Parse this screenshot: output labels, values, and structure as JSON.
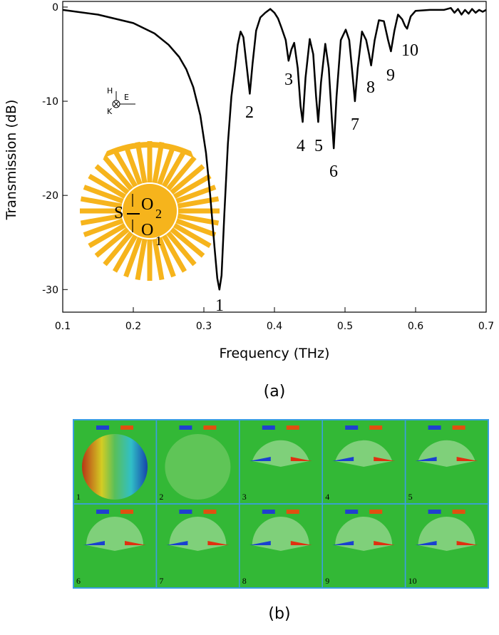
{
  "chart_data": {
    "type": "line",
    "xlabel": "Frequency (THz)",
    "ylabel": "Transmission (dB)",
    "x": [
      0.1,
      0.15,
      0.2,
      0.23,
      0.25,
      0.265,
      0.275,
      0.285,
      0.295,
      0.303,
      0.309,
      0.315,
      0.319,
      0.322,
      0.325,
      0.329,
      0.334,
      0.339,
      0.344,
      0.348,
      0.352,
      0.356,
      0.361,
      0.365,
      0.369,
      0.374,
      0.38,
      0.387,
      0.394,
      0.4,
      0.405,
      0.41,
      0.416,
      0.42,
      0.424,
      0.428,
      0.433,
      0.437,
      0.44,
      0.444,
      0.45,
      0.455,
      0.459,
      0.462,
      0.466,
      0.472,
      0.477,
      0.481,
      0.484,
      0.488,
      0.494,
      0.501,
      0.506,
      0.511,
      0.514,
      0.518,
      0.524,
      0.53,
      0.534,
      0.537,
      0.542,
      0.548,
      0.555,
      0.561,
      0.565,
      0.57,
      0.575,
      0.581,
      0.585,
      0.588,
      0.593,
      0.6,
      0.62,
      0.64,
      0.65,
      0.655,
      0.66,
      0.665,
      0.67,
      0.675,
      0.68,
      0.685,
      0.69,
      0.695,
      0.7
    ],
    "values": [
      -0.3,
      -0.8,
      -1.7,
      -2.8,
      -4.0,
      -5.3,
      -6.6,
      -8.5,
      -11.5,
      -15.5,
      -20.0,
      -25.5,
      -28.8,
      -30.0,
      -28.5,
      -22.0,
      -14.5,
      -9.5,
      -6.5,
      -4.0,
      -2.6,
      -3.2,
      -6.5,
      -9.2,
      -6.0,
      -2.5,
      -1.1,
      -0.6,
      -0.2,
      -0.6,
      -1.2,
      -2.2,
      -3.5,
      -5.7,
      -4.5,
      -3.8,
      -6.5,
      -10.5,
      -12.2,
      -7.5,
      -3.4,
      -5.0,
      -9.5,
      -12.2,
      -8.0,
      -3.9,
      -6.5,
      -11.5,
      -15.0,
      -9.5,
      -3.5,
      -2.4,
      -3.5,
      -7.5,
      -10.0,
      -6.5,
      -2.6,
      -3.5,
      -5.0,
      -6.2,
      -3.5,
      -1.4,
      -1.5,
      -3.5,
      -4.7,
      -2.5,
      -0.8,
      -1.3,
      -2.0,
      -2.3,
      -1.0,
      -0.4,
      -0.3,
      -0.3,
      -0.1,
      -0.6,
      -0.2,
      -0.8,
      -0.3,
      -0.7,
      -0.2,
      -0.6,
      -0.3,
      -0.5,
      -0.3
    ],
    "color": "#000000",
    "xlim": [
      0.1,
      0.7
    ],
    "ylim": [
      -32.4,
      0.6
    ],
    "xticks": [
      0.1,
      0.2,
      0.3,
      0.4,
      0.5,
      0.6,
      0.7
    ],
    "yticks": [
      0,
      -10,
      -20,
      -30
    ],
    "annotations": [
      "1",
      "2",
      "3",
      "4",
      "5",
      "6",
      "7",
      "8",
      "9",
      "10"
    ]
  },
  "inset": {
    "polarization": [
      "H",
      "E",
      "K"
    ],
    "structure": [
      "S",
      "O",
      "2",
      "O",
      "1"
    ]
  },
  "panel_a_label": "(a)",
  "field_maps": {
    "labels": [
      "1",
      "2",
      "3",
      "4",
      "5",
      "6",
      "7",
      "8",
      "9",
      "10"
    ],
    "caption": "(b)"
  }
}
